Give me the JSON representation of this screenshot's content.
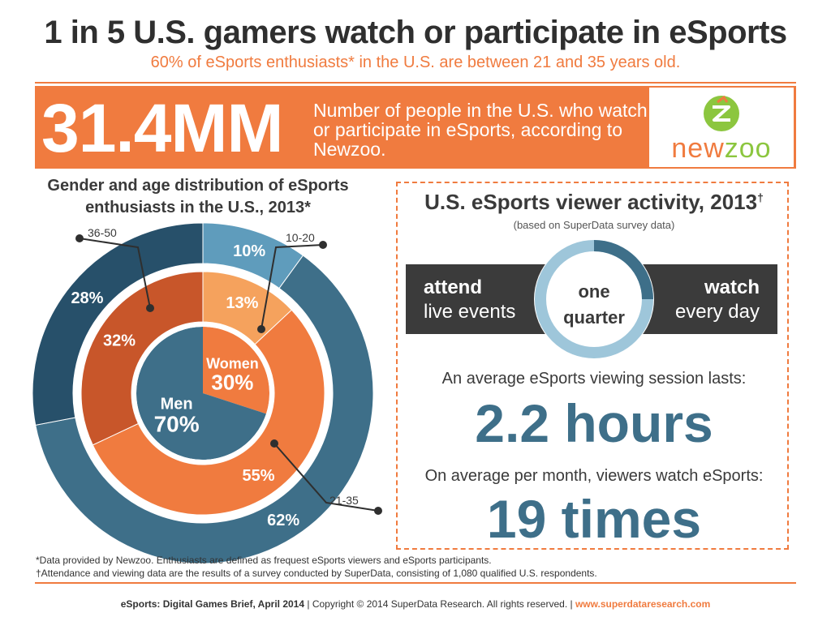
{
  "header": {
    "title": "1 in 5 U.S. gamers watch or participate in eSports",
    "subtitle": "60% of eSports enthusiasts* in the U.S. are between 21 and 35 years old."
  },
  "banner": {
    "big_number": "31.4MM",
    "description": "Number of people in the U.S. who watch or participate in eSports, according to Newzoo.",
    "logo_text_a": "new",
    "logo_text_b": "zoo"
  },
  "chart_data": {
    "type": "pie",
    "title": "Gender and age distribution of eSports enthusiasts in the U.S., 2013*",
    "gender": [
      {
        "name": "Women",
        "value": 30,
        "label": "30%"
      },
      {
        "name": "Men",
        "value": 70,
        "label": "70%"
      }
    ],
    "women_age": [
      {
        "group": "10-20",
        "value": 13,
        "label": "13%"
      },
      {
        "group": "21-35",
        "value": 55,
        "label": "55%"
      },
      {
        "group": "36-50",
        "value": 32,
        "label": "32%"
      }
    ],
    "men_age": [
      {
        "group": "10-20",
        "value": 10,
        "label": "10%"
      },
      {
        "group": "21-35",
        "value": 62,
        "label": "62%"
      },
      {
        "group": "36-50",
        "value": 28,
        "label": "28%"
      }
    ],
    "callouts": [
      "36-50",
      "10-20",
      "21-35"
    ]
  },
  "activity": {
    "title": "U.S. eSports viewer activity, 2013",
    "title_mark": "†",
    "subtitle": "(based on SuperData survey data)",
    "left_bold": "attend",
    "left_text": "live events",
    "center_line1": "one",
    "center_line2": "quarter",
    "right_bold": "watch",
    "right_text": "every day",
    "quarter_fraction": 0.25,
    "session_label": "An average eSports viewing session lasts:",
    "session_value": "2.2 hours",
    "monthly_label": "On average per month, viewers watch eSports:",
    "monthly_value": "19 times"
  },
  "footnotes": {
    "line1": "*Data provided by Newzoo. Enthusiasts are defined as frequest eSports viewers and eSports participants.",
    "line2": "†Attendance and viewing data are the results of a survey conducted by SuperData, consisting of 1,080 qualified U.S. respondents."
  },
  "footer": {
    "brief": "eSports: Digital Games Brief, April 2014",
    "copyright": "| Copyright © 2014 SuperData Research. All rights reserved. |",
    "url": "www.superdataresearch.com"
  },
  "colors": {
    "orange": "#f07b3f",
    "orange_light": "#f5a25d",
    "orange_dark": "#c8562a",
    "blue": "#3e6f89",
    "blue_light": "#5f9cbc",
    "blue_dark": "#27506a",
    "dark": "#3b3b3b"
  }
}
